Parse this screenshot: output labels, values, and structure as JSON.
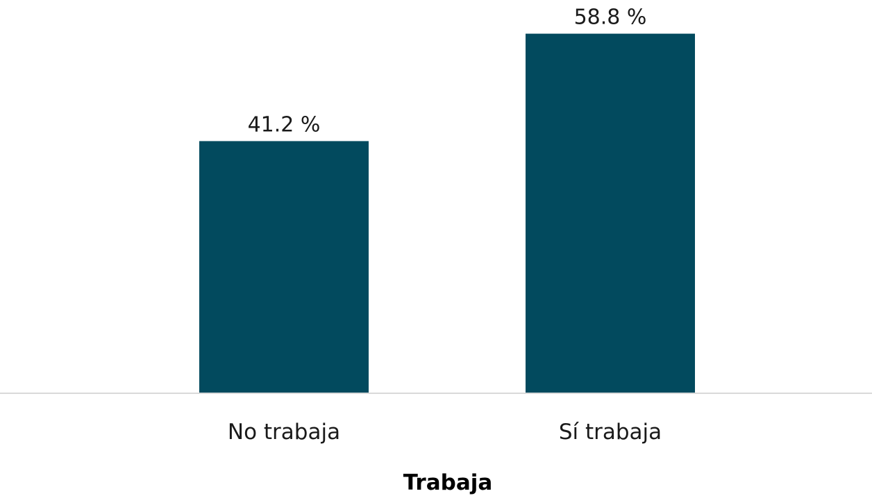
{
  "chart_data": {
    "type": "bar",
    "title": "",
    "xlabel": "Trabaja",
    "ylabel": "",
    "categories": [
      "No trabaja",
      "Sí trabaja"
    ],
    "values": [
      41.2,
      58.8
    ],
    "data_labels": [
      "41.2 %",
      "58.8 %"
    ],
    "ylim": [
      0,
      60
    ],
    "grid": false,
    "legend": "none"
  },
  "colors": {
    "bar": "#024a5e",
    "axis_line": "#d9d9d9"
  }
}
